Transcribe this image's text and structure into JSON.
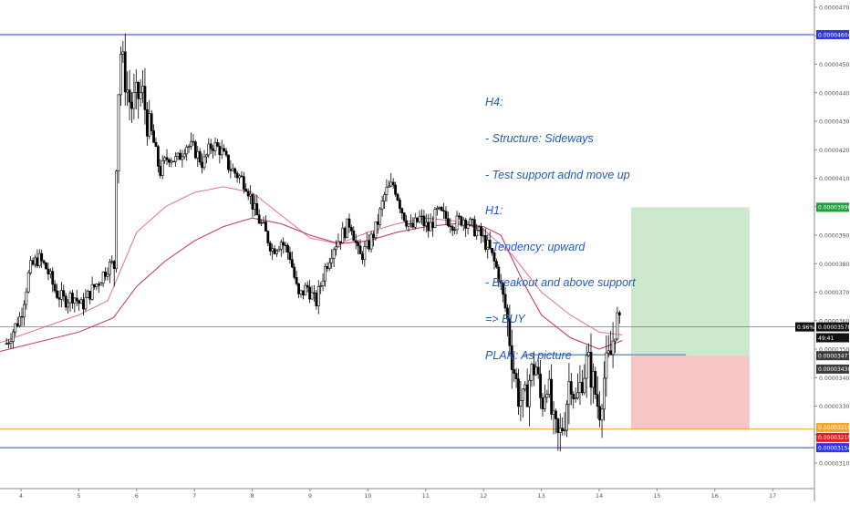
{
  "chart_data": {
    "type": "candlestick",
    "title": "",
    "xlabel": "",
    "ylabel": "",
    "x_ticks": [
      "4",
      "5",
      "6",
      "7",
      "8",
      "9",
      "10",
      "11",
      "12",
      "13",
      "14",
      "15",
      "16",
      "17"
    ],
    "y_ticks": [
      "0.00004700",
      "0.00004600",
      "0.00004500",
      "0.00004400",
      "0.00004300",
      "0.00004200",
      "0.00004100",
      "0.00004000",
      "0.00003900",
      "0.00003800",
      "0.00003700",
      "0.00003600",
      "0.00003500",
      "0.00003400",
      "0.00003300",
      "0.00003200",
      "0.00003100"
    ],
    "ylim": [
      3.06e-05,
      4.74e-05
    ],
    "grid": false,
    "price_path": [
      {
        "x": 3.75,
        "y": 3.52e-05
      },
      {
        "x": 4.0,
        "y": 3.62e-05
      },
      {
        "x": 4.15,
        "y": 3.78e-05
      },
      {
        "x": 4.3,
        "y": 3.82e-05
      },
      {
        "x": 4.45,
        "y": 3.78e-05
      },
      {
        "x": 4.6,
        "y": 3.7e-05
      },
      {
        "x": 4.75,
        "y": 3.67e-05
      },
      {
        "x": 4.9,
        "y": 3.69e-05
      },
      {
        "x": 5.05,
        "y": 3.65e-05
      },
      {
        "x": 5.2,
        "y": 3.7e-05
      },
      {
        "x": 5.35,
        "y": 3.74e-05
      },
      {
        "x": 5.5,
        "y": 3.79e-05
      },
      {
        "x": 5.62,
        "y": 3.8e-05
      },
      {
        "x": 5.66,
        "y": 4.3e-05
      },
      {
        "x": 5.72,
        "y": 4.55e-05
      },
      {
        "x": 5.8,
        "y": 4.45e-05
      },
      {
        "x": 5.9,
        "y": 4.35e-05
      },
      {
        "x": 6.0,
        "y": 4.38e-05
      },
      {
        "x": 6.1,
        "y": 4.4e-05
      },
      {
        "x": 6.2,
        "y": 4.28e-05
      },
      {
        "x": 6.3,
        "y": 4.22e-05
      },
      {
        "x": 6.4,
        "y": 4.12e-05
      },
      {
        "x": 6.55,
        "y": 4.18e-05
      },
      {
        "x": 6.7,
        "y": 4.16e-05
      },
      {
        "x": 6.85,
        "y": 4.22e-05
      },
      {
        "x": 7.0,
        "y": 4.2e-05
      },
      {
        "x": 7.15,
        "y": 4.15e-05
      },
      {
        "x": 7.3,
        "y": 4.22e-05
      },
      {
        "x": 7.45,
        "y": 4.2e-05
      },
      {
        "x": 7.6,
        "y": 4.14e-05
      },
      {
        "x": 7.75,
        "y": 4.11e-05
      },
      {
        "x": 7.9,
        "y": 4.08e-05
      },
      {
        "x": 8.05,
        "y": 3.98e-05
      },
      {
        "x": 8.2,
        "y": 3.92e-05
      },
      {
        "x": 8.35,
        "y": 3.85e-05
      },
      {
        "x": 8.5,
        "y": 3.88e-05
      },
      {
        "x": 8.65,
        "y": 3.83e-05
      },
      {
        "x": 8.8,
        "y": 3.68e-05
      },
      {
        "x": 8.95,
        "y": 3.72e-05
      },
      {
        "x": 9.1,
        "y": 3.66e-05
      },
      {
        "x": 9.25,
        "y": 3.78e-05
      },
      {
        "x": 9.4,
        "y": 3.86e-05
      },
      {
        "x": 9.55,
        "y": 3.9e-05
      },
      {
        "x": 9.7,
        "y": 3.95e-05
      },
      {
        "x": 9.85,
        "y": 3.82e-05
      },
      {
        "x": 10.0,
        "y": 3.86e-05
      },
      {
        "x": 10.15,
        "y": 3.93e-05
      },
      {
        "x": 10.3,
        "y": 4.05e-05
      },
      {
        "x": 10.45,
        "y": 4.08e-05
      },
      {
        "x": 10.6,
        "y": 3.98e-05
      },
      {
        "x": 10.75,
        "y": 3.92e-05
      },
      {
        "x": 10.9,
        "y": 3.96e-05
      },
      {
        "x": 11.05,
        "y": 3.92e-05
      },
      {
        "x": 11.2,
        "y": 3.98e-05
      },
      {
        "x": 11.35,
        "y": 3.96e-05
      },
      {
        "x": 11.5,
        "y": 3.94e-05
      },
      {
        "x": 11.65,
        "y": 3.96e-05
      },
      {
        "x": 11.8,
        "y": 3.93e-05
      },
      {
        "x": 11.95,
        "y": 3.9e-05
      },
      {
        "x": 12.1,
        "y": 3.85e-05
      },
      {
        "x": 12.25,
        "y": 3.77e-05
      },
      {
        "x": 12.4,
        "y": 3.62e-05
      },
      {
        "x": 12.5,
        "y": 3.46e-05
      },
      {
        "x": 12.6,
        "y": 3.34e-05
      },
      {
        "x": 12.7,
        "y": 3.3e-05
      },
      {
        "x": 12.8,
        "y": 3.4e-05
      },
      {
        "x": 12.9,
        "y": 3.45e-05
      },
      {
        "x": 13.0,
        "y": 3.3e-05
      },
      {
        "x": 13.1,
        "y": 3.4e-05
      },
      {
        "x": 13.2,
        "y": 3.23e-05
      },
      {
        "x": 13.3,
        "y": 3.18e-05
      },
      {
        "x": 13.4,
        "y": 3.26e-05
      },
      {
        "x": 13.5,
        "y": 3.42e-05
      },
      {
        "x": 13.6,
        "y": 3.3e-05
      },
      {
        "x": 13.7,
        "y": 3.4e-05
      },
      {
        "x": 13.8,
        "y": 3.46e-05
      },
      {
        "x": 13.9,
        "y": 3.38e-05
      },
      {
        "x": 14.0,
        "y": 3.28e-05
      },
      {
        "x": 14.1,
        "y": 3.42e-05
      },
      {
        "x": 14.2,
        "y": 3.48e-05
      },
      {
        "x": 14.3,
        "y": 3.62e-05
      },
      {
        "x": 14.38,
        "y": 3.58e-05
      }
    ],
    "moving_averages": [
      {
        "name": "",
        "color": "#e07098",
        "points": [
          {
            "x": 3.6,
            "y": 3.52e-05
          },
          {
            "x": 5.0,
            "y": 3.62e-05
          },
          {
            "x": 5.5,
            "y": 3.67e-05
          },
          {
            "x": 6.0,
            "y": 3.91e-05
          },
          {
            "x": 6.5,
            "y": 4e-05
          },
          {
            "x": 7.0,
            "y": 4.05e-05
          },
          {
            "x": 7.5,
            "y": 4.07e-05
          },
          {
            "x": 8.0,
            "y": 4.05e-05
          },
          {
            "x": 8.5,
            "y": 3.97e-05
          },
          {
            "x": 9.0,
            "y": 3.89e-05
          },
          {
            "x": 9.5,
            "y": 3.87e-05
          },
          {
            "x": 10.0,
            "y": 3.91e-05
          },
          {
            "x": 10.5,
            "y": 3.94e-05
          },
          {
            "x": 11.0,
            "y": 3.96e-05
          },
          {
            "x": 11.5,
            "y": 3.95e-05
          },
          {
            "x": 12.0,
            "y": 3.92e-05
          },
          {
            "x": 12.5,
            "y": 3.83e-05
          },
          {
            "x": 13.0,
            "y": 3.7e-05
          },
          {
            "x": 13.5,
            "y": 3.62e-05
          },
          {
            "x": 14.0,
            "y": 3.56e-05
          },
          {
            "x": 14.4,
            "y": 3.55e-05
          }
        ]
      },
      {
        "name": "",
        "color": "#c03060",
        "points": [
          {
            "x": 3.6,
            "y": 3.49e-05
          },
          {
            "x": 5.0,
            "y": 3.56e-05
          },
          {
            "x": 5.6,
            "y": 3.61e-05
          },
          {
            "x": 6.0,
            "y": 3.72e-05
          },
          {
            "x": 6.5,
            "y": 3.81e-05
          },
          {
            "x": 7.0,
            "y": 3.88e-05
          },
          {
            "x": 7.5,
            "y": 3.93e-05
          },
          {
            "x": 8.0,
            "y": 3.96e-05
          },
          {
            "x": 8.5,
            "y": 3.94e-05
          },
          {
            "x": 9.0,
            "y": 3.9e-05
          },
          {
            "x": 9.5,
            "y": 3.87e-05
          },
          {
            "x": 10.0,
            "y": 3.88e-05
          },
          {
            "x": 10.5,
            "y": 3.91e-05
          },
          {
            "x": 11.0,
            "y": 3.93e-05
          },
          {
            "x": 11.5,
            "y": 3.94e-05
          },
          {
            "x": 12.0,
            "y": 3.93e-05
          },
          {
            "x": 12.3,
            "y": 3.9e-05
          },
          {
            "x": 12.7,
            "y": 3.73e-05
          },
          {
            "x": 13.0,
            "y": 3.62e-05
          },
          {
            "x": 13.5,
            "y": 3.54e-05
          },
          {
            "x": 14.0,
            "y": 3.5e-05
          },
          {
            "x": 14.4,
            "y": 3.53e-05
          }
        ]
      }
    ],
    "horizontal_lines": [
      {
        "y": 4.604e-05,
        "label": "0.00004604",
        "color": "#2f36e6"
      },
      {
        "y": 3.154e-05,
        "label": "0.00003154",
        "color": "#2f36e6"
      },
      {
        "y": 3.219e-05,
        "label": "",
        "color": "#f5a623"
      },
      {
        "y": 3.578e-05,
        "label": "",
        "color": "#7a7a7a"
      }
    ],
    "support_segment": {
      "x_start": 12.7,
      "x_end": 15.5,
      "y": 3.48e-05,
      "color": "#5aa0d8"
    },
    "position_tool": {
      "x_start": 14.55,
      "x_end": 16.6,
      "target": 3.998e-05,
      "entry": 3.477e-05,
      "stop": 3.219e-05,
      "profit_color": "#cde8cc",
      "loss_color": "#f6c5c5"
    },
    "price_labels": [
      {
        "text": "0.00004604",
        "y": 4.604e-05,
        "bg": "#2f36e6",
        "fg": "#ffffff"
      },
      {
        "text": "0.00003998",
        "y": 3.998e-05,
        "bg": "#1f9e3a",
        "fg": "#ffffff"
      },
      {
        "text": "0.96%",
        "y": 3.578e-05,
        "bg": "#111111",
        "fg": "#ffffff"
      },
      {
        "text": "0.00003578",
        "y": 3.578e-05,
        "bg": "#111111",
        "fg": "#ffffff"
      },
      {
        "text": "49:41",
        "y": 3.54e-05,
        "bg": "#111111",
        "fg": "#ffffff"
      },
      {
        "text": "0.00003477",
        "y": 3.477e-05,
        "bg": "#3c3c3c",
        "fg": "#ffffff"
      },
      {
        "text": "0.00003430",
        "y": 3.43e-05,
        "bg": "#3c3c3c",
        "fg": "#ffffff"
      },
      {
        "text": "0.00003219",
        "y": 3.225e-05,
        "bg": "#f5a623",
        "fg": "#ffffff"
      },
      {
        "text": "0.00003219",
        "y": 3.19e-05,
        "bg": "#e02020",
        "fg": "#ffffff"
      },
      {
        "text": "0.00003154",
        "y": 3.154e-05,
        "bg": "#2f36e6",
        "fg": "#ffffff"
      }
    ],
    "annotation_lines": [
      "H4:",
      "- Structure: Sideways",
      "- Test support adnd move up",
      "H1:",
      "- Tendency: upward",
      "- Breakout and above support",
      "=> BUY",
      "PLAN: As picture"
    ]
  }
}
